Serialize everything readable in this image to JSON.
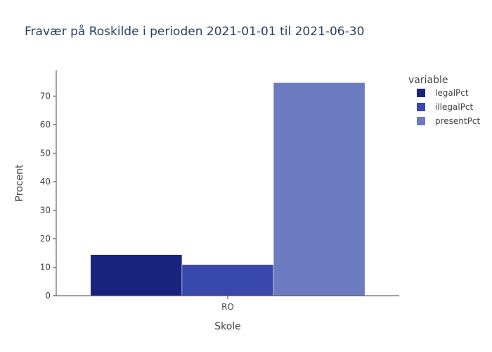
{
  "chart_data": {
    "type": "bar",
    "title": "Fravær på Roskilde i perioden 2021-01-01 til 2021-06-30",
    "xlabel": "Skole",
    "ylabel": "Procent",
    "categories": [
      "RO"
    ],
    "ylim": [
      0,
      79
    ],
    "yticks": [
      0,
      10,
      20,
      30,
      40,
      50,
      60,
      70
    ],
    "grid": false,
    "legend": {
      "title": "variable",
      "placement": "top-right"
    },
    "series": [
      {
        "name": "legalPct",
        "values": [
          14.4
        ],
        "color": "#19247f"
      },
      {
        "name": "illegalPct",
        "values": [
          10.9
        ],
        "color": "#3848ab"
      },
      {
        "name": "presentPct",
        "values": [
          74.7
        ],
        "color": "#6c7cc1"
      }
    ]
  }
}
